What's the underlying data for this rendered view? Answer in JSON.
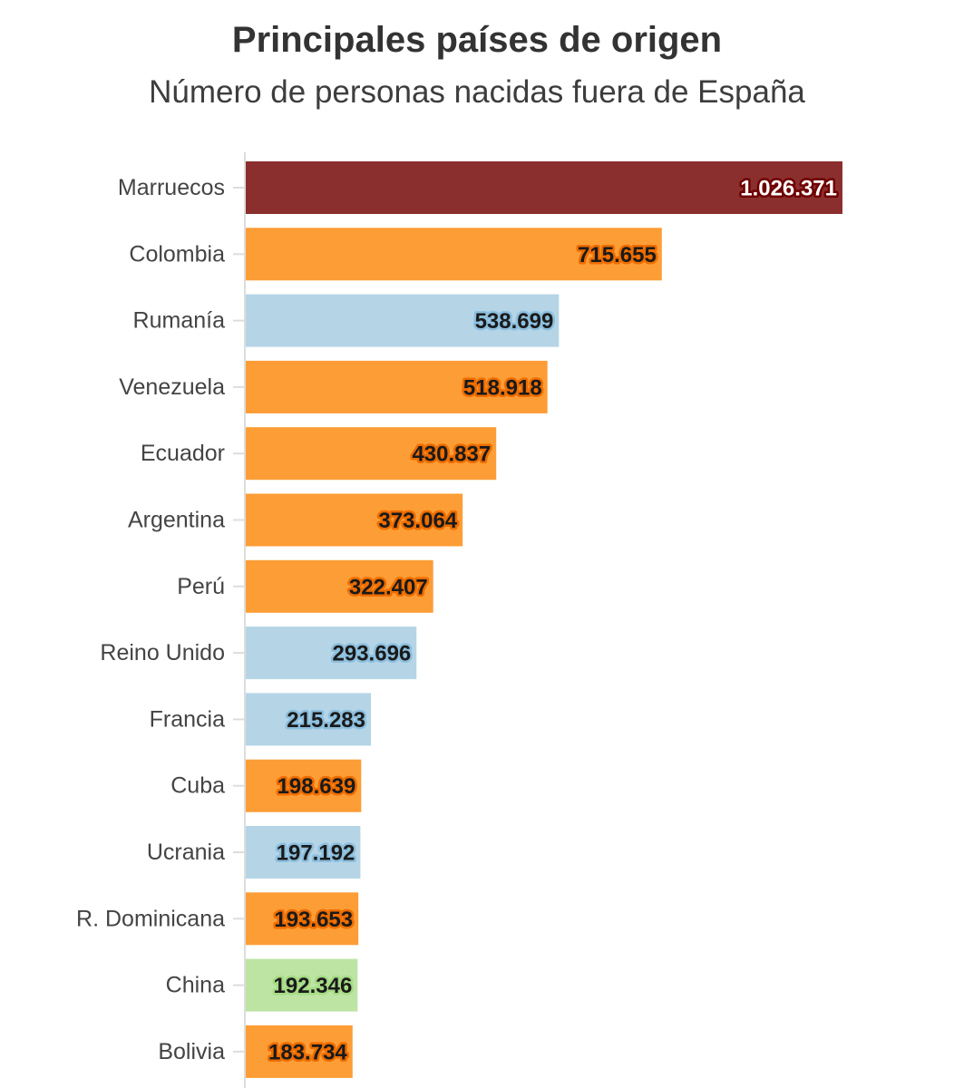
{
  "chart_data": {
    "type": "bar",
    "orientation": "horizontal",
    "title": "Principales países de origen",
    "subtitle": "Número de personas nacidas fuera de España",
    "xlabel": "",
    "ylabel": "",
    "xlim": [
      0,
      1026371
    ],
    "grid": false,
    "legend": "none",
    "categories": [
      "Marruecos",
      "Colombia",
      "Rumanía",
      "Venezuela",
      "Ecuador",
      "Argentina",
      "Perú",
      "Reino Unido",
      "Francia",
      "Cuba",
      "Ucrania",
      "R. Dominicana",
      "China",
      "Bolivia"
    ],
    "values": [
      1026371,
      715655,
      538699,
      518918,
      430837,
      373064,
      322407,
      293696,
      215283,
      198639,
      197192,
      193653,
      192346,
      183734
    ],
    "value_labels": [
      "1.026.371",
      "715.655",
      "538.699",
      "518.918",
      "430.837",
      "373.064",
      "322.407",
      "293.696",
      "215.283",
      "198.639",
      "197.192",
      "193.653",
      "192.346",
      "183.734"
    ],
    "groups": [
      "highlight",
      "latam",
      "europe",
      "latam",
      "latam",
      "latam",
      "latam",
      "europe",
      "europe",
      "latam",
      "europe",
      "latam",
      "asia",
      "latam"
    ],
    "colors": {
      "highlight": "#8b2e2e",
      "latam": "#fd9d35",
      "europe": "#b5d5e7",
      "asia": "#bde4a3"
    },
    "label_colors": {
      "highlight": {
        "fill": "#ffffff",
        "halo": "#6e0000"
      },
      "latam": {
        "fill": "#1a1a1a",
        "halo": "#ee6d00"
      },
      "europe": {
        "fill": "#1a1a1a",
        "halo": "#8dbfde"
      },
      "asia": {
        "fill": "#1a1a1a",
        "halo": "#a6db85"
      }
    }
  }
}
